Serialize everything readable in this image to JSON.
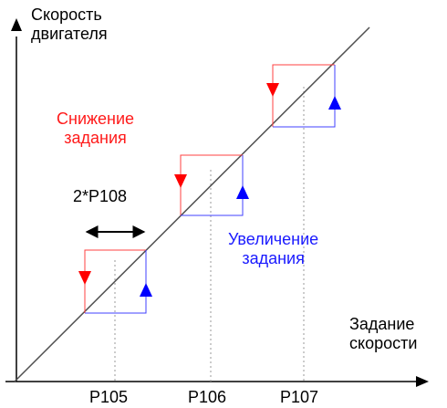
{
  "y_axis": {
    "line1": "Скорость",
    "line2": "двигателя"
  },
  "x_axis": {
    "line1": "Задание",
    "line2": "скорости"
  },
  "decrease": {
    "line1": "Снижение",
    "line2": "задания",
    "color": "#ff0000"
  },
  "increase": {
    "line1": "Увеличение",
    "line2": "задания",
    "color": "#0000ff"
  },
  "hysteresis_label": "2*P108",
  "ticks": [
    "P105",
    "P106",
    "P107"
  ]
}
